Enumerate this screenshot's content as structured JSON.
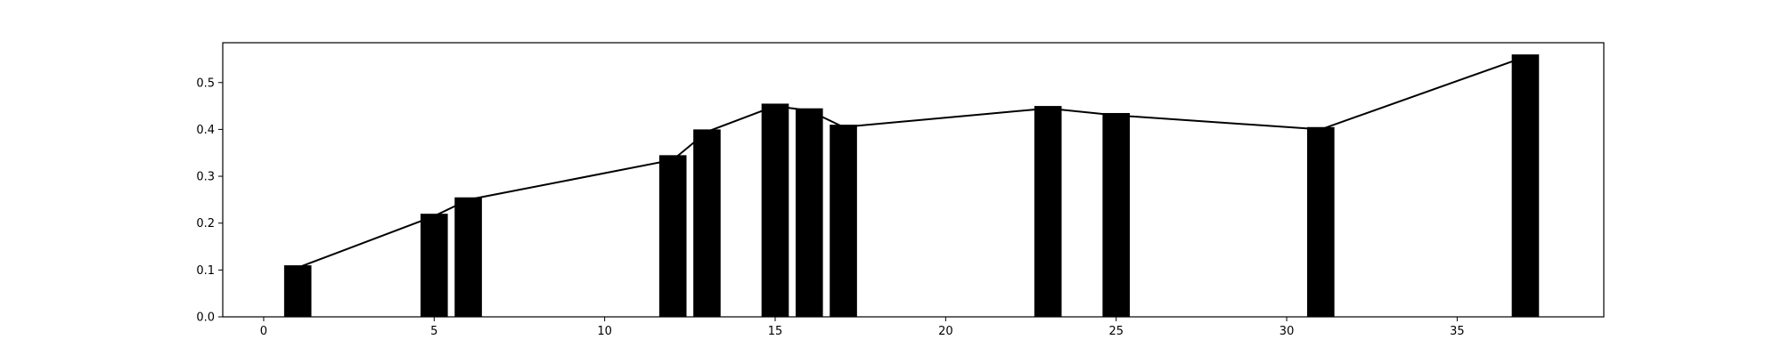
{
  "chart_data": {
    "type": "bar",
    "title": "",
    "xlabel": "",
    "ylabel": "",
    "x": [
      1,
      5,
      6,
      12,
      13,
      15,
      16,
      17,
      23,
      25,
      31,
      37
    ],
    "values": [
      0.11,
      0.22,
      0.255,
      0.345,
      0.4,
      0.455,
      0.445,
      0.41,
      0.45,
      0.435,
      0.405,
      0.56
    ],
    "bar_width": 0.8,
    "line": {
      "x": [
        1,
        5,
        6,
        12,
        13,
        15,
        16,
        17,
        23,
        25,
        31,
        37
      ],
      "y": [
        0.105,
        0.215,
        0.25,
        0.335,
        0.395,
        0.45,
        0.44,
        0.405,
        0.445,
        0.43,
        0.4,
        0.555
      ]
    },
    "xlim": [
      -1.2,
      39.3
    ],
    "ylim": [
      0,
      0.585
    ],
    "x_ticks": [
      0,
      5,
      10,
      15,
      20,
      25,
      30,
      35
    ],
    "y_ticks": [
      0.0,
      0.1,
      0.2,
      0.3,
      0.4,
      0.5
    ],
    "x_tick_labels": [
      "0",
      "5",
      "10",
      "15",
      "20",
      "25",
      "30",
      "35"
    ],
    "y_tick_labels": [
      "0.0",
      "0.1",
      "0.2",
      "0.3",
      "0.4",
      "0.5"
    ],
    "grid": false,
    "legend": "none",
    "bar_color": "#000000",
    "line_color": "#000000"
  }
}
